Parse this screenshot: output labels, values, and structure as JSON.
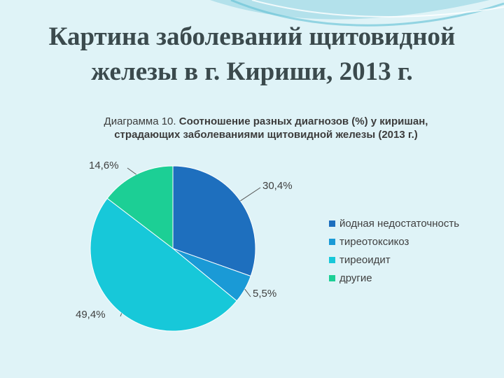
{
  "slide": {
    "title_line1": "Картина заболеваний щитовидной",
    "title_line2": "железы в г. Кириши, 2013 г."
  },
  "chart_data": {
    "type": "pie",
    "title_prefix": "Диаграмма 10.",
    "title_main": "Соотношение разных диагнозов (%) у киришан,",
    "title_line2": "страдающих заболеваниями щитовидной железы (2013 г.)",
    "categories": [
      "йодная недостаточность",
      "тиреотоксикоз",
      "тиреоидит",
      "другие"
    ],
    "values": [
      30.4,
      5.5,
      49.4,
      14.6
    ],
    "labels": [
      "30,4%",
      "5,5%",
      "49,4%",
      "14,6%"
    ],
    "colors": [
      "#1e6fbe",
      "#1a9ad6",
      "#17c8d9",
      "#1ccf95"
    ],
    "legend_position": "right",
    "start_angle_deg": 0,
    "direction": "clockwise"
  }
}
